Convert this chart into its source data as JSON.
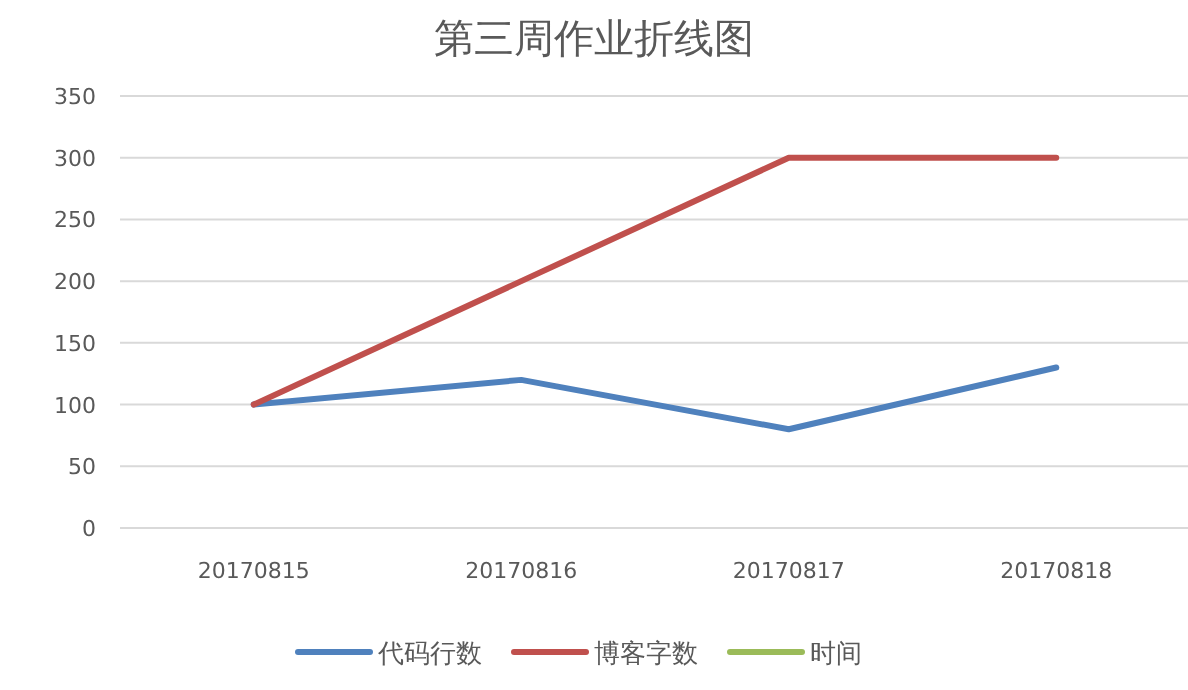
{
  "chart_data": {
    "type": "line",
    "title": "第三周作业折线图",
    "categories": [
      "20170815",
      "20170816",
      "20170817",
      "20170818"
    ],
    "series": [
      {
        "name": "代码行数",
        "color": "#4f81bd",
        "values": [
          100,
          120,
          80,
          130
        ]
      },
      {
        "name": "博客字数",
        "color": "#c0504d",
        "values": [
          100,
          200,
          300,
          300
        ]
      },
      {
        "name": "时间",
        "color": "#9bbb59",
        "values": [
          null,
          null,
          null,
          null
        ]
      }
    ],
    "ylim": [
      0,
      350
    ],
    "yticks": [
      0,
      50,
      100,
      150,
      200,
      250,
      300,
      350
    ],
    "grid": "y",
    "legend": "bottom",
    "marker": "none",
    "line_style": "solid"
  }
}
